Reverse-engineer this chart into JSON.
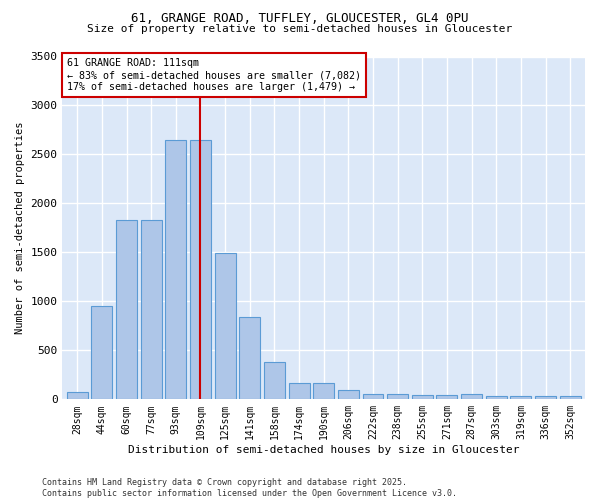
{
  "title1": "61, GRANGE ROAD, TUFFLEY, GLOUCESTER, GL4 0PU",
  "title2": "Size of property relative to semi-detached houses in Gloucester",
  "xlabel": "Distribution of semi-detached houses by size in Gloucester",
  "ylabel": "Number of semi-detached properties",
  "categories": [
    "28sqm",
    "44sqm",
    "60sqm",
    "77sqm",
    "93sqm",
    "109sqm",
    "125sqm",
    "141sqm",
    "158sqm",
    "174sqm",
    "190sqm",
    "206sqm",
    "222sqm",
    "238sqm",
    "255sqm",
    "271sqm",
    "287sqm",
    "303sqm",
    "319sqm",
    "336sqm",
    "352sqm"
  ],
  "values": [
    75,
    950,
    1830,
    1830,
    2650,
    2650,
    1490,
    840,
    380,
    170,
    170,
    100,
    55,
    55,
    45,
    45,
    55,
    30,
    30,
    30,
    30
  ],
  "bar_color": "#aec6e8",
  "bar_edge_color": "#5b9bd5",
  "vline_index": 5,
  "vline_color": "#cc0000",
  "annotation_text": "61 GRANGE ROAD: 111sqm\n← 83% of semi-detached houses are smaller (7,082)\n17% of semi-detached houses are larger (1,479) →",
  "annotation_box_color": "#cc0000",
  "background_color": "#dce8f8",
  "footer_text": "Contains HM Land Registry data © Crown copyright and database right 2025.\nContains public sector information licensed under the Open Government Licence v3.0.",
  "ylim": [
    0,
    3500
  ],
  "grid_color": "#ffffff"
}
